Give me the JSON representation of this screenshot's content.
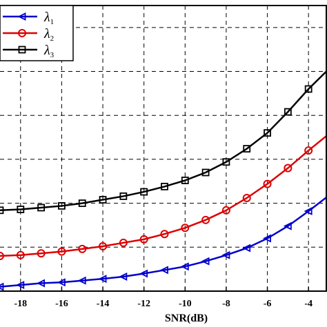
{
  "chart_data": {
    "type": "line",
    "xlabel": "SNR(dB)",
    "ylabel": "",
    "x": [
      -19,
      -18,
      -17,
      -16,
      -15,
      -14,
      -13,
      -12,
      -11,
      -10,
      -9,
      -8,
      -7,
      -6,
      -5,
      -4,
      -3
    ],
    "xlim": [
      -19,
      -3.1
    ],
    "ylim": [
      0,
      6.5
    ],
    "xticks": [
      -18,
      -16,
      -14,
      -12,
      -10,
      -8,
      -6,
      -4
    ],
    "xtick_labels": [
      "-18",
      "-16",
      "-14",
      "-12",
      "-10",
      "-8",
      "-6",
      "-4"
    ],
    "ygrid": [
      1,
      2,
      3,
      4,
      5,
      6
    ],
    "grid": true,
    "legend": {
      "placement": "top-left"
    },
    "series": [
      {
        "name": "λ1",
        "label_base": "λ",
        "label_sub": "1",
        "color": "#0000cc",
        "marker": "triangle-left",
        "values": [
          0.1,
          0.14,
          0.18,
          0.2,
          0.24,
          0.28,
          0.33,
          0.4,
          0.48,
          0.56,
          0.68,
          0.82,
          0.98,
          1.2,
          1.48,
          1.82,
          2.18
        ]
      },
      {
        "name": "λ2",
        "label_base": "λ",
        "label_sub": "2",
        "color": "#dd0000",
        "marker": "circle",
        "values": [
          0.8,
          0.82,
          0.86,
          0.9,
          0.96,
          1.02,
          1.1,
          1.18,
          1.3,
          1.44,
          1.62,
          1.84,
          2.12,
          2.44,
          2.8,
          3.2,
          3.58
        ]
      },
      {
        "name": "λ3",
        "label_base": "λ",
        "label_sub": "3",
        "color": "#000000",
        "marker": "square",
        "values": [
          1.84,
          1.86,
          1.9,
          1.94,
          2.0,
          2.08,
          2.16,
          2.26,
          2.38,
          2.52,
          2.7,
          2.94,
          3.24,
          3.6,
          4.08,
          4.6,
          5.06
        ]
      }
    ]
  }
}
